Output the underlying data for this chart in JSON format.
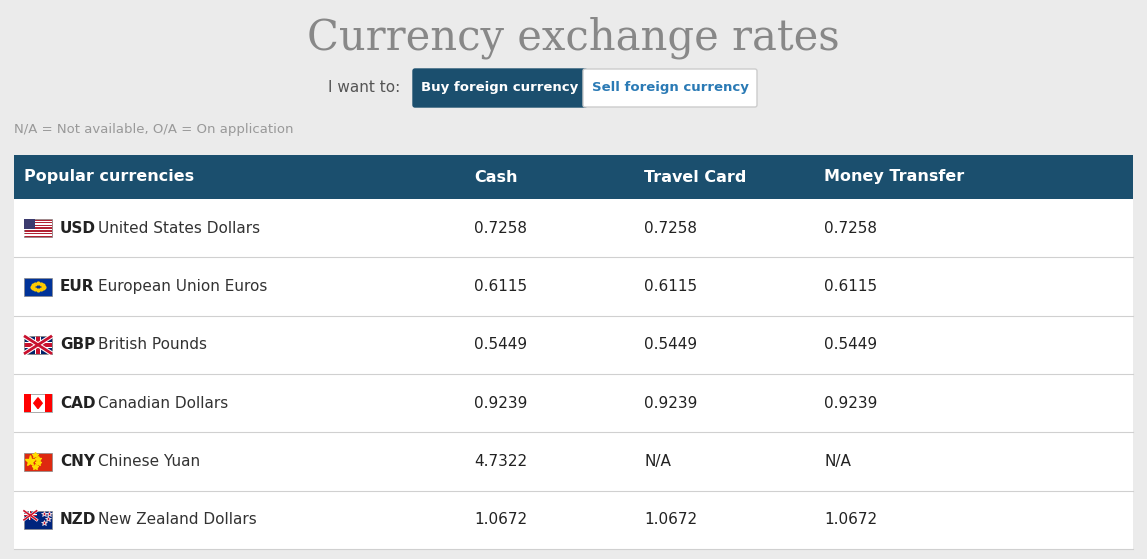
{
  "title": "Currency exchange rates",
  "subtitle_label": "I want to:",
  "btn1_text": "Buy foreign currency",
  "btn2_text": "Sell foreign currency",
  "footnote": "N/A = Not available, O/A = On application",
  "header_bg": "#1b4f6e",
  "header_text_color": "#ffffff",
  "bg_color": "#ebebeb",
  "table_bg_white": "#ffffff",
  "row_line_color": "#d0d0d0",
  "btn1_bg": "#1b4f6e",
  "btn1_text_color": "#ffffff",
  "btn2_bg": "#ffffff",
  "btn2_text_color": "#2a7ab5",
  "btn_border_color": "#cccccc",
  "columns": [
    "Popular currencies",
    "Cash",
    "Travel Card",
    "Money Transfer"
  ],
  "rows": [
    {
      "code": "USD",
      "name": "United States Dollars",
      "cash": "0.7258",
      "travel": "0.7258",
      "transfer": "0.7258",
      "flag": "usd"
    },
    {
      "code": "EUR",
      "name": "European Union Euros",
      "cash": "0.6115",
      "travel": "0.6115",
      "transfer": "0.6115",
      "flag": "eur"
    },
    {
      "code": "GBP",
      "name": "British Pounds",
      "cash": "0.5449",
      "travel": "0.5449",
      "transfer": "0.5449",
      "flag": "gbp"
    },
    {
      "code": "CAD",
      "name": "Canadian Dollars",
      "cash": "0.9239",
      "travel": "0.9239",
      "transfer": "0.9239",
      "flag": "cad"
    },
    {
      "code": "CNY",
      "name": "Chinese Yuan",
      "cash": "4.7322",
      "travel": "N/A",
      "transfer": "N/A",
      "flag": "cny"
    },
    {
      "code": "NZD",
      "name": "New Zealand Dollars",
      "cash": "1.0672",
      "travel": "1.0672",
      "transfer": "1.0672",
      "flag": "nzd"
    }
  ],
  "title_fontsize": 30,
  "title_color": "#888888",
  "header_fontsize": 11.5,
  "row_fontsize": 11,
  "footnote_fontsize": 9.5,
  "footnote_color": "#999999",
  "label_fontsize": 11
}
